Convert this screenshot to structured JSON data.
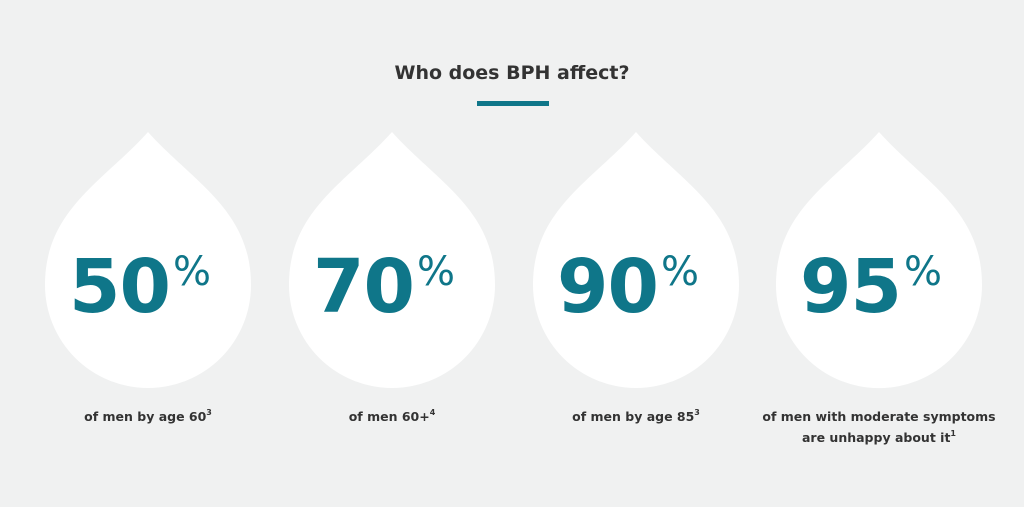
{
  "title": "Who does BPH affect?",
  "stats": [
    {
      "number": "50",
      "unit": "%",
      "caption": [
        "of men by age 60"
      ],
      "ref": "3"
    },
    {
      "number": "70",
      "unit": "%",
      "caption": [
        "of men 60+"
      ],
      "ref": "4"
    },
    {
      "number": "90",
      "unit": "%",
      "caption": [
        "of men by age 85"
      ],
      "ref": "3"
    },
    {
      "number": "95",
      "unit": "%",
      "caption": [
        "of men with moderate symptoms",
        "are unhappy about it"
      ],
      "ref": "1"
    }
  ]
}
